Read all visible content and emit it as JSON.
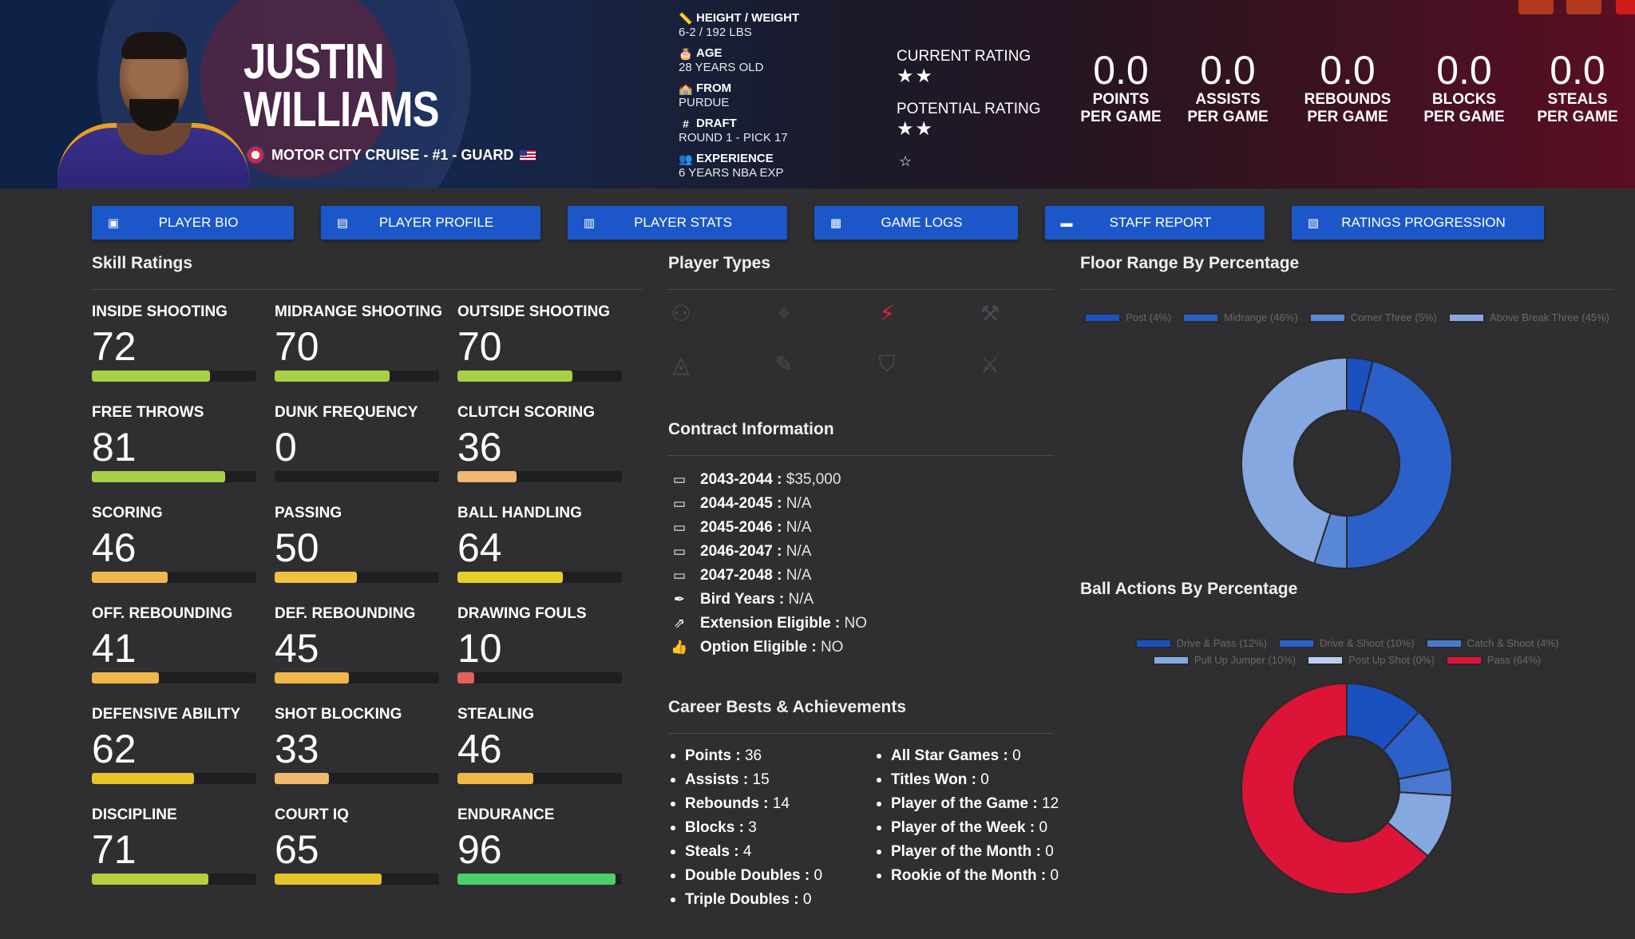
{
  "player": {
    "first_name": "JUSTIN",
    "last_name": "WILLIAMS",
    "team_line": "MOTOR CITY CRUISE - #1 - GUARD"
  },
  "bio": [
    {
      "icon": "ruler-icon",
      "glyph": "📏",
      "label": "HEIGHT / WEIGHT",
      "value": "6-2 / 192 LBS"
    },
    {
      "icon": "age-icon",
      "glyph": "🎂",
      "label": "AGE",
      "value": "28 YEARS OLD"
    },
    {
      "icon": "school-icon",
      "glyph": "🏫",
      "label": "FROM",
      "value": "PURDUE"
    },
    {
      "icon": "hash-icon",
      "glyph": "#",
      "label": "DRAFT",
      "value": "ROUND 1 - PICK 17"
    },
    {
      "icon": "users-icon",
      "glyph": "👥",
      "label": "EXPERIENCE",
      "value": "6 YEARS NBA EXP"
    }
  ],
  "ratings": {
    "current_label": "CURRENT RATING",
    "current_stars": "★★",
    "potential_label": "POTENTIAL RATING",
    "potential_stars": "★★",
    "extra_star": "☆"
  },
  "stats": [
    {
      "value": "0.0",
      "label1": "POINTS",
      "label2": "PER GAME"
    },
    {
      "value": "0.0",
      "label1": "ASSISTS",
      "label2": "PER GAME"
    },
    {
      "value": "0.0",
      "label1": "REBOUNDS",
      "label2": "PER GAME"
    },
    {
      "value": "0.0",
      "label1": "BLOCKS",
      "label2": "PER GAME"
    },
    {
      "value": "0.0",
      "label1": "STEALS",
      "label2": "PER GAME"
    }
  ],
  "tabs": [
    {
      "icon": "id-card-icon",
      "glyph": "▣",
      "label": "PLAYER BIO"
    },
    {
      "icon": "profile-icon",
      "glyph": "▤",
      "label": "PLAYER PROFILE"
    },
    {
      "icon": "bar-chart-icon",
      "glyph": "▥",
      "label": "PLAYER STATS"
    },
    {
      "icon": "clipboard-icon",
      "glyph": "▦",
      "label": "GAME LOGS"
    },
    {
      "icon": "comment-icon",
      "glyph": "▬",
      "label": "STAFF REPORT"
    },
    {
      "icon": "line-chart-icon",
      "glyph": "▧",
      "label": "RATINGS PROGRESSION"
    }
  ],
  "sections": {
    "skills_title": "Skill Ratings",
    "player_types_title": "Player Types",
    "contract_title": "Contract Information",
    "career_title": "Career Bests & Achievements",
    "floor_title": "Floor Range By Percentage",
    "ball_title": "Ball Actions By Percentage"
  },
  "skills": [
    {
      "name": "INSIDE SHOOTING",
      "value": 72,
      "color": "#a8d046"
    },
    {
      "name": "MIDRANGE SHOOTING",
      "value": 70,
      "color": "#a8d046"
    },
    {
      "name": "OUTSIDE SHOOTING",
      "value": 70,
      "color": "#a8d046"
    },
    {
      "name": "FREE THROWS",
      "value": 81,
      "color": "#a8d046"
    },
    {
      "name": "DUNK FREQUENCY",
      "value": 0,
      "color": "#e04848"
    },
    {
      "name": "CLUTCH SCORING",
      "value": 36,
      "color": "#f0b870"
    },
    {
      "name": "SCORING",
      "value": 46,
      "color": "#f0b84a"
    },
    {
      "name": "PASSING",
      "value": 50,
      "color": "#f0c040"
    },
    {
      "name": "BALL HANDLING",
      "value": 64,
      "color": "#e6d028"
    },
    {
      "name": "OFF. REBOUNDING",
      "value": 41,
      "color": "#f0b84a"
    },
    {
      "name": "DEF. REBOUNDING",
      "value": 45,
      "color": "#f0b84a"
    },
    {
      "name": "DRAWING FOULS",
      "value": 10,
      "color": "#e06060"
    },
    {
      "name": "DEFENSIVE ABILITY",
      "value": 62,
      "color": "#e6c428"
    },
    {
      "name": "SHOT BLOCKING",
      "value": 33,
      "color": "#f0b870"
    },
    {
      "name": "STEALING",
      "value": 46,
      "color": "#f0b84a"
    },
    {
      "name": "DISCIPLINE",
      "value": 71,
      "color": "#b4d040"
    },
    {
      "name": "COURT IQ",
      "value": 65,
      "color": "#e6c428"
    },
    {
      "name": "ENDURANCE",
      "value": 96,
      "color": "#4cce68"
    }
  ],
  "player_types": [
    {
      "icon": "basketball-icon",
      "glyph": "⚇",
      "active": false
    },
    {
      "icon": "crosshair-icon",
      "glyph": "⌖",
      "active": false
    },
    {
      "icon": "bolt-icon",
      "glyph": "⚡",
      "active": true
    },
    {
      "icon": "paint-roller-icon",
      "glyph": "⚒",
      "active": false
    },
    {
      "icon": "triangle-icon",
      "glyph": "◬",
      "active": false
    },
    {
      "icon": "wand-icon",
      "glyph": "✎",
      "active": false
    },
    {
      "icon": "shield-icon",
      "glyph": "⛉",
      "active": false
    },
    {
      "icon": "broom-icon",
      "glyph": "⚔",
      "active": false
    }
  ],
  "contract": [
    {
      "icon": "money-icon",
      "glyph": "▭",
      "label": "2043-2044",
      "value": "$35,000"
    },
    {
      "icon": "money-icon",
      "glyph": "▭",
      "label": "2044-2045",
      "value": "N/A"
    },
    {
      "icon": "money-icon",
      "glyph": "▭",
      "label": "2045-2046",
      "value": "N/A"
    },
    {
      "icon": "money-icon",
      "glyph": "▭",
      "label": "2046-2047",
      "value": "N/A"
    },
    {
      "icon": "money-icon",
      "glyph": "▭",
      "label": "2047-2048",
      "value": "N/A"
    },
    {
      "icon": "feather-icon",
      "glyph": "✒",
      "label": "Bird Years",
      "value": "N/A"
    },
    {
      "icon": "external-link-icon",
      "glyph": "⇗",
      "label": "Extension Eligible",
      "value": "NO"
    },
    {
      "icon": "thumbs-up-icon",
      "glyph": "👍",
      "label": "Option Eligible",
      "value": "NO"
    }
  ],
  "career_left": [
    {
      "label": "Points",
      "value": "36"
    },
    {
      "label": "Assists",
      "value": "15"
    },
    {
      "label": "Rebounds",
      "value": "14"
    },
    {
      "label": "Blocks",
      "value": "3"
    },
    {
      "label": "Steals",
      "value": "4"
    },
    {
      "label": "Double Doubles",
      "value": "0"
    },
    {
      "label": "Triple Doubles",
      "value": "0"
    }
  ],
  "career_right": [
    {
      "label": "All Star Games",
      "value": "0"
    },
    {
      "label": "Titles Won",
      "value": "0"
    },
    {
      "label": "Player of the Game",
      "value": "12"
    },
    {
      "label": "Player of the Week",
      "value": "0"
    },
    {
      "label": "Player of the Month",
      "value": "0"
    },
    {
      "label": "Rookie of the Month",
      "value": "0"
    }
  ],
  "chart_data": [
    {
      "type": "pie",
      "title": "Floor Range By Percentage",
      "categories": [
        "Post (4%)",
        "Midrange (46%)",
        "Corner Three (5%)",
        "Above Break Three (45%)"
      ],
      "values": [
        4,
        46,
        5,
        45
      ],
      "colors": [
        "#1a50c0",
        "#2a60c8",
        "#5a88d8",
        "#86a8e0"
      ],
      "legend": "top"
    },
    {
      "type": "pie",
      "title": "Ball Actions By Percentage",
      "categories": [
        "Drive & Pass (12%)",
        "Drive & Shoot (10%)",
        "Catch & Shoot (4%)",
        "Pull Up Jumper (10%)",
        "Post Up Shot (0%)",
        "Pass (64%)"
      ],
      "values": [
        12,
        10,
        4,
        10,
        0,
        64
      ],
      "colors": [
        "#1a50c0",
        "#2a60c8",
        "#4a78d0",
        "#86a8e0",
        "#b8cef0",
        "#dc1438"
      ],
      "legend": "top"
    }
  ]
}
